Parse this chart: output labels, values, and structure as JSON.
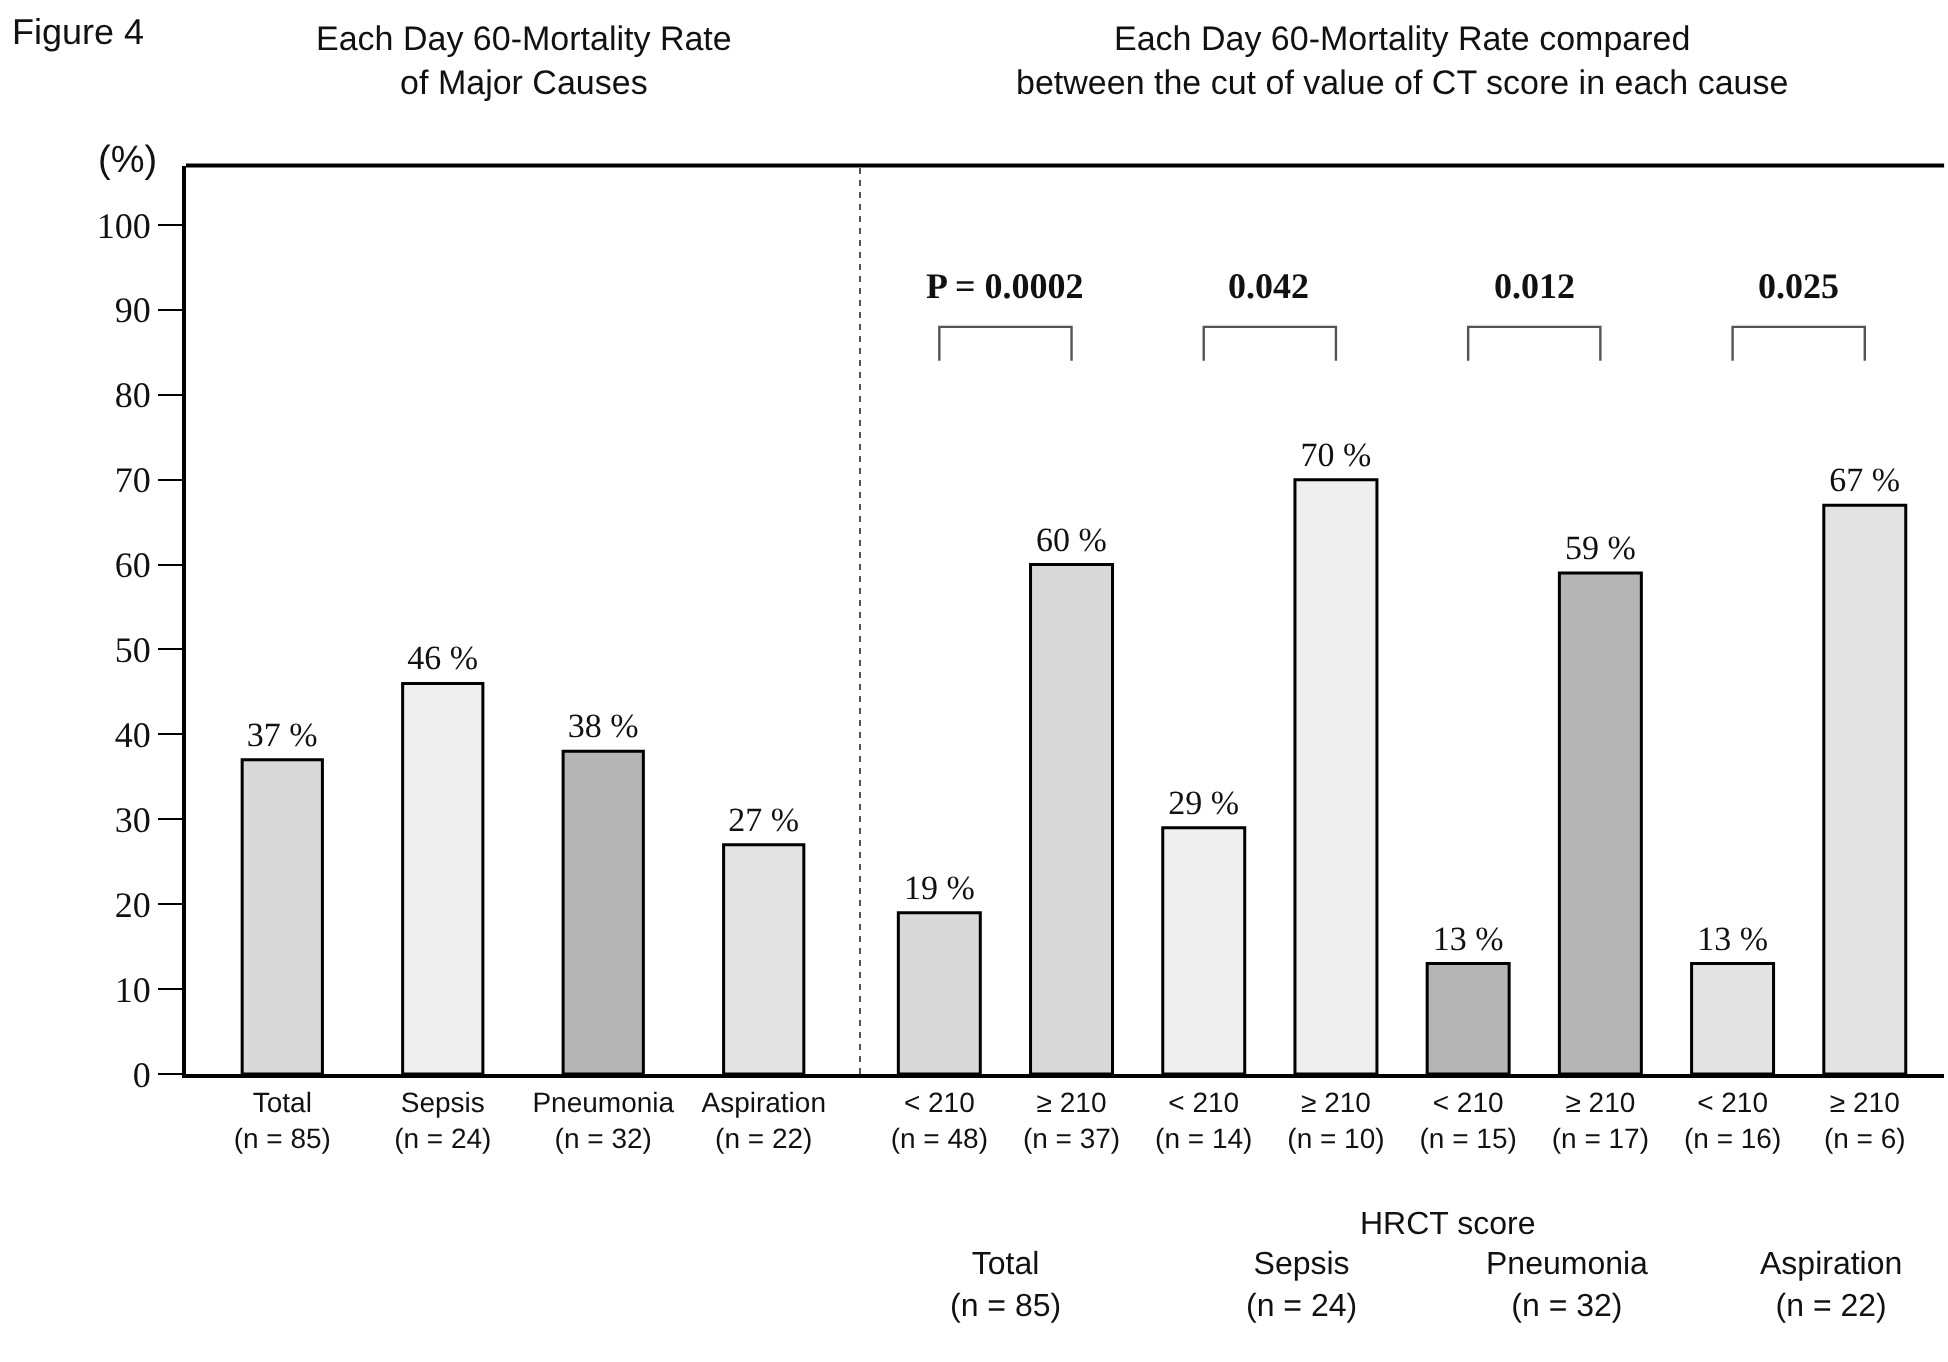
{
  "chart_data": [
    {
      "type": "bar",
      "title": "Each Day 60-Mortality Rate\nof Major Causes",
      "ylabel": "(%)",
      "categories": [
        "Total\n(n = 85)",
        "Sepsis\n(n = 24)",
        "Pneumonia\n(n = 32)",
        "Aspiration\n(n = 22)"
      ],
      "values": [
        37,
        46,
        38,
        27
      ],
      "value_labels": [
        "37 %",
        "46 %",
        "38 %",
        "27 %"
      ],
      "colors": [
        "#d9d9d9",
        "#efefef",
        "#b5b5b5",
        "#e3e3e3"
      ],
      "ylim": [
        0,
        107
      ],
      "yticks": [
        0,
        10,
        20,
        30,
        40,
        50,
        60,
        70,
        80,
        90,
        100
      ],
      "annotations": [
        "Figure 4"
      ]
    },
    {
      "type": "bar",
      "title": "Each Day 60-Mortality Rate compared\nbetween the cut of value of CT score in each cause",
      "xlabel": "HRCT score",
      "categories": [
        "< 210\n(n = 48)",
        "≥ 210\n(n = 37)",
        "< 210\n(n = 14)",
        "≥ 210\n(n = 10)",
        "< 210\n(n = 15)",
        "≥ 210\n(n = 17)",
        "< 210\n(n = 16)",
        "≥ 210\n(n = 6)"
      ],
      "values": [
        19,
        60,
        29,
        70,
        13,
        59,
        13,
        67
      ],
      "value_labels": [
        "19 %",
        "60 %",
        "29 %",
        "70 %",
        "13 %",
        "59 %",
        "13 %",
        "67 %"
      ],
      "colors": [
        "#d9d9d9",
        "#d9d9d9",
        "#efefef",
        "#efefef",
        "#b5b5b5",
        "#b5b5b5",
        "#e3e3e3",
        "#e3e3e3"
      ],
      "ylim": [
        0,
        107
      ],
      "yticks": [
        0,
        10,
        20,
        30,
        40,
        50,
        60,
        70,
        80,
        90,
        100
      ],
      "tick_labels": "x",
      "annotations": [
        "P = 0.0002",
        "0.042",
        "0.012",
        "0.025",
        "Total\n(n = 85)",
        "Sepsis\n(n = 24)",
        "Pneumonia\n(n = 32)",
        "Aspiration\n(n = 22)"
      ]
    }
  ]
}
